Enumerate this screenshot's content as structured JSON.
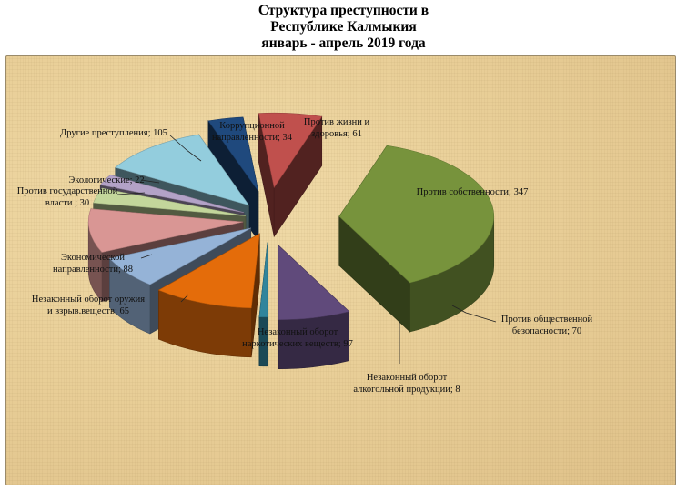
{
  "title": {
    "line1": "Структура  преступности в",
    "line2": "Республике Калмыкия",
    "line3": "январь - апрель 2019 года"
  },
  "chart_data": {
    "type": "pie",
    "title": "Структура  преступности в Республике Калмыкия январь - апрель 2019 года",
    "style": "3d exploded pie",
    "slices": [
      {
        "name": "Против собственности",
        "value": 347,
        "color": "#77933c",
        "label_lines": [
          "Против собственности; 347"
        ]
      },
      {
        "name": "Против общественной безопасности",
        "value": 70,
        "color": "#604a7b",
        "label_lines": [
          "Против общественной",
          "безопасности; 70"
        ]
      },
      {
        "name": "Незаконный оборот алкогольной продукции",
        "value": 8,
        "color": "#31859c",
        "label_lines": [
          "Незаконный оборот",
          "алкогольной продукции; 8"
        ]
      },
      {
        "name": "Незаконный оборот наркотических веществ",
        "value": 97,
        "color": "#e46c0a",
        "label_lines": [
          "Незаконный  оборот",
          "наркотических веществ; 97"
        ]
      },
      {
        "name": "Незаконный оборот оружия и взрыв.веществ",
        "value": 65,
        "color": "#95b3d7",
        "label_lines": [
          "Незаконный  оборот оружия",
          "и взрыв.веществ;  65"
        ]
      },
      {
        "name": "Экономической направленности",
        "value": 88,
        "color": "#d99694",
        "label_lines": [
          "Экономической",
          "направленности; 88"
        ]
      },
      {
        "name": "Против государственной власти",
        "value": 30,
        "color": "#c3d69b",
        "label_lines": [
          "Против государственной",
          "власти ; 30"
        ]
      },
      {
        "name": "Экологические",
        "value": 22,
        "color": "#b3a2c7",
        "label_lines": [
          "Экологические;  22"
        ]
      },
      {
        "name": "Другие преступления",
        "value": 105,
        "color": "#93cddd",
        "label_lines": [
          "Другие преступления;  105"
        ]
      },
      {
        "name": "Коррупционной направленности",
        "value": 34,
        "color": "#1f497d",
        "label_lines": [
          "Коррупционной",
          "направленности;  34"
        ]
      },
      {
        "name": "Против жизни и здоровья",
        "value": 61,
        "color": "#c0504d",
        "label_lines": [
          "Против жизни и",
          "здоровья;  61"
        ]
      }
    ]
  }
}
